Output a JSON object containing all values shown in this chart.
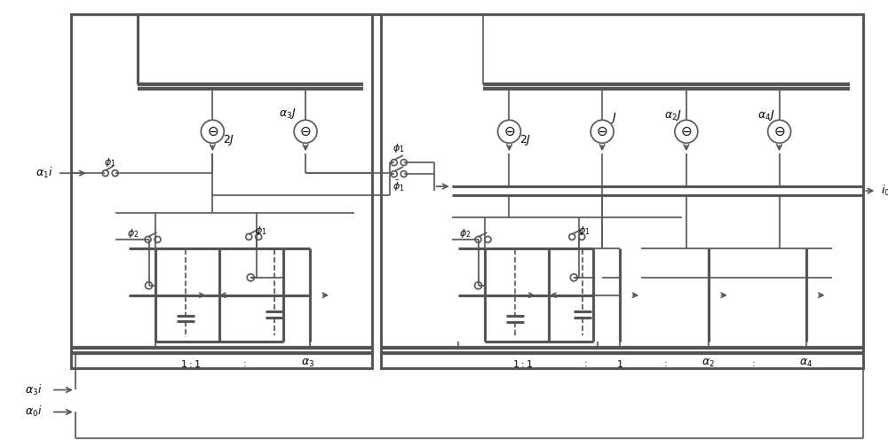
{
  "lc": "#555555",
  "lw": 1.2,
  "lw2": 2.2,
  "lw3": 3.0
}
